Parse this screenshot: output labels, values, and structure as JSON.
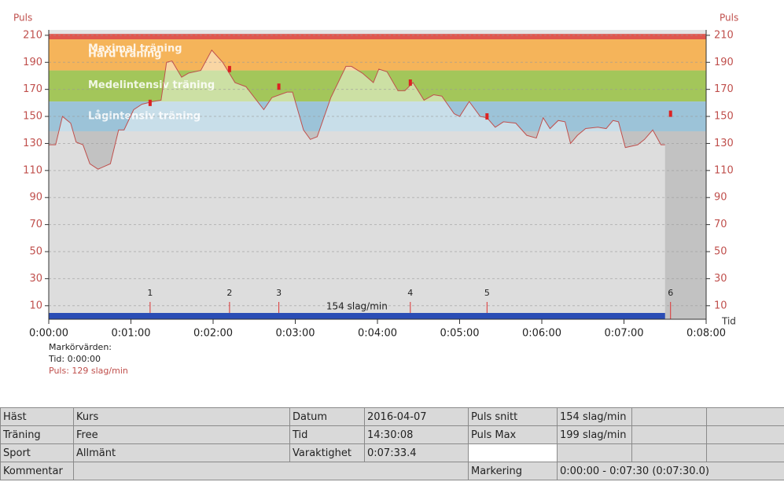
{
  "chart_data": {
    "type": "line",
    "y_label": "Puls",
    "x_label": "Tid",
    "color": "#c0504d",
    "xlim": [
      0,
      480
    ],
    "xticks": [
      {
        "value": 0,
        "label": "0:00:00"
      },
      {
        "value": 60,
        "label": "0:01:00"
      },
      {
        "value": 120,
        "label": "0:02:00"
      },
      {
        "value": 180,
        "label": "0:03:00"
      },
      {
        "value": 240,
        "label": "0:04:00"
      },
      {
        "value": 300,
        "label": "0:05:00"
      },
      {
        "value": 360,
        "label": "0:06:00"
      },
      {
        "value": 420,
        "label": "0:07:00"
      },
      {
        "value": 480,
        "label": "0:08:00"
      }
    ],
    "ylim": [
      0,
      214
    ],
    "yticks": [
      10,
      30,
      50,
      70,
      90,
      110,
      130,
      150,
      170,
      190,
      210
    ],
    "grid": true,
    "zones": [
      {
        "name": "Maximal träning",
        "from": 207,
        "to": 211,
        "color": "#e0574e"
      },
      {
        "name": "Hård träning",
        "from": 184,
        "to": 207,
        "color": "#f5b45a"
      },
      {
        "name": "Medelintensiv träning",
        "from": 161,
        "to": 184,
        "color": "#a3c65a"
      },
      {
        "name": "Lågintensiv träning",
        "from": 139,
        "to": 161,
        "color": "#9cc3d8"
      }
    ],
    "x": [
      0,
      5,
      10,
      16,
      20,
      25,
      30,
      36,
      45,
      51,
      55,
      62,
      68,
      76,
      82,
      86,
      90,
      97,
      102,
      111,
      119,
      127,
      136,
      144,
      157,
      163,
      174,
      178,
      186,
      191,
      196,
      206,
      217,
      221,
      229,
      237,
      241,
      247,
      255,
      260,
      266,
      274,
      281,
      287,
      296,
      300,
      307,
      315,
      320,
      326,
      332,
      341,
      349,
      356,
      361,
      366,
      372,
      377,
      381,
      386,
      392,
      401,
      407,
      412,
      416,
      421,
      430,
      435,
      441,
      447,
      450
    ],
    "values": [
      129,
      129,
      150,
      145,
      131,
      129,
      115,
      111,
      115,
      140,
      140,
      155,
      159,
      161,
      162,
      190,
      191,
      179,
      182,
      184,
      199,
      190,
      175,
      172,
      155,
      164,
      168,
      168,
      140,
      133,
      135,
      164,
      187,
      187,
      182,
      175,
      185,
      183,
      169,
      169,
      175,
      162,
      166,
      165,
      152,
      150,
      161,
      150,
      149,
      142,
      146,
      145,
      136,
      134,
      149,
      141,
      147,
      146,
      130,
      136,
      141,
      142,
      141,
      147,
      146,
      127,
      129,
      133,
      140,
      129,
      129
    ],
    "markers": [
      {
        "label": "1",
        "x": 74,
        "value": 160
      },
      {
        "label": "2",
        "x": 132,
        "value": 185
      },
      {
        "label": "3",
        "x": 168,
        "value": 172
      },
      {
        "label": "4",
        "x": 264,
        "value": 175
      },
      {
        "label": "5",
        "x": 320,
        "value": 150
      },
      {
        "label": "6",
        "x": 454,
        "value": 152
      }
    ],
    "average": {
      "label": "154 slag/min",
      "from": 0,
      "to": 450
    },
    "marker_info": {
      "title": "Markörvärden:",
      "time": "Tid: 0:00:00",
      "pulse": "Puls: 129 slag/min"
    }
  },
  "table": {
    "rows": [
      [
        "Häst",
        "Kurs",
        "Datum",
        "2016-04-07",
        "Puls snitt",
        "154 slag/min"
      ],
      [
        "Träning",
        "Free",
        "Tid",
        "14:30:08",
        "Puls Max",
        "199 slag/min"
      ],
      [
        "Sport",
        "Allmänt",
        "Varaktighet",
        "0:07:33.4"
      ],
      [
        "Kommentar",
        "Markering",
        "0:00:00 - 0:07:30 (0:07:30.0)"
      ]
    ]
  }
}
